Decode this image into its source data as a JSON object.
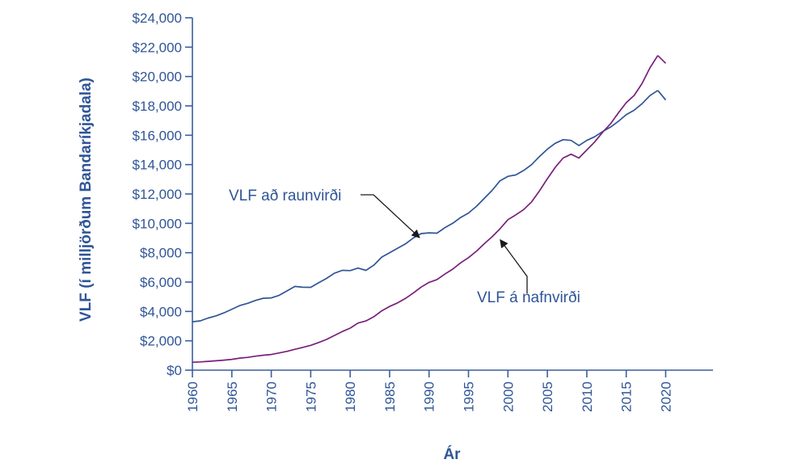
{
  "chart_data": {
    "type": "line",
    "xlabel": "Ár",
    "ylabel": "VLF (í milljörðum Bandaríkjadala)",
    "xlim": [
      1960,
      2026
    ],
    "ylim": [
      0,
      24000
    ],
    "x_ticks": [
      "1960",
      "1965",
      "1970",
      "1975",
      "1980",
      "1985",
      "1990",
      "1995",
      "2000",
      "2005",
      "2010",
      "2015",
      "2020"
    ],
    "y_ticks": [
      "$0",
      "$2,000",
      "$4,000",
      "$6,000",
      "$8,000",
      "$10,000",
      "$12,000",
      "$14,000",
      "$16,000",
      "$18,000",
      "$20,000",
      "$22,000",
      "$24,000"
    ],
    "grid": false,
    "x": [
      1960,
      1961,
      1962,
      1963,
      1964,
      1965,
      1966,
      1967,
      1968,
      1969,
      1970,
      1971,
      1972,
      1973,
      1974,
      1975,
      1976,
      1977,
      1978,
      1979,
      1980,
      1981,
      1982,
      1983,
      1984,
      1985,
      1986,
      1987,
      1988,
      1989,
      1990,
      1991,
      1992,
      1993,
      1994,
      1995,
      1996,
      1997,
      1998,
      1999,
      2000,
      2001,
      2002,
      2003,
      2004,
      2005,
      2006,
      2007,
      2008,
      2009,
      2010,
      2011,
      2012,
      2013,
      2014,
      2015,
      2016,
      2017,
      2018,
      2019
    ],
    "series": [
      {
        "name": "VLF að raunvirði",
        "color": "#2f5597",
        "values": [
          3300,
          3360,
          3550,
          3700,
          3900,
          4150,
          4400,
          4550,
          4750,
          4900,
          4920,
          5100,
          5400,
          5700,
          5650,
          5640,
          5950,
          6250,
          6600,
          6800,
          6780,
          6950,
          6800,
          7150,
          7700,
          8000,
          8300,
          8600,
          9000,
          9300,
          9350,
          9330,
          9700,
          10000,
          10400,
          10700,
          11150,
          11700,
          12250,
          12900,
          13200,
          13300,
          13600,
          14000,
          14550,
          15050,
          15450,
          15700,
          15650,
          15300,
          15650,
          15900,
          16250,
          16550,
          16950,
          17400,
          17700,
          18150,
          18700,
          19050
        ]
      },
      {
        "name": "VLF á nafnvirði",
        "color": "#7a1f7a",
        "values": [
          540,
          560,
          600,
          640,
          680,
          740,
          820,
          870,
          950,
          1020,
          1070,
          1170,
          1280,
          1420,
          1550,
          1690,
          1880,
          2090,
          2360,
          2630,
          2860,
          3210,
          3350,
          3640,
          4040,
          4340,
          4580,
          4880,
          5250,
          5660,
          5980,
          6170,
          6540,
          6880,
          7310,
          7660,
          8100,
          8610,
          9090,
          9630,
          10250,
          10580,
          10940,
          11460,
          12210,
          13040,
          13810,
          14450,
          14710,
          14450,
          15000,
          15540,
          16200,
          16780,
          17520,
          18220,
          18710,
          19520,
          20580,
          21430
        ]
      },
      {
        "name": "",
        "color": "#2f5597",
        "x": [
          2019,
          2020
        ],
        "values": [
          19050,
          18400
        ]
      },
      {
        "name": "",
        "color": "#7a1f7a",
        "x": [
          2019,
          2020
        ],
        "values": [
          21430,
          20900
        ]
      }
    ],
    "annotations": [
      {
        "text": "VLF að raunvirði",
        "points_to_x": 1989,
        "points_to_y": 9300
      },
      {
        "text": "VLF á nafnvirði",
        "points_to_x": 1998,
        "points_to_y": 9100
      }
    ]
  }
}
